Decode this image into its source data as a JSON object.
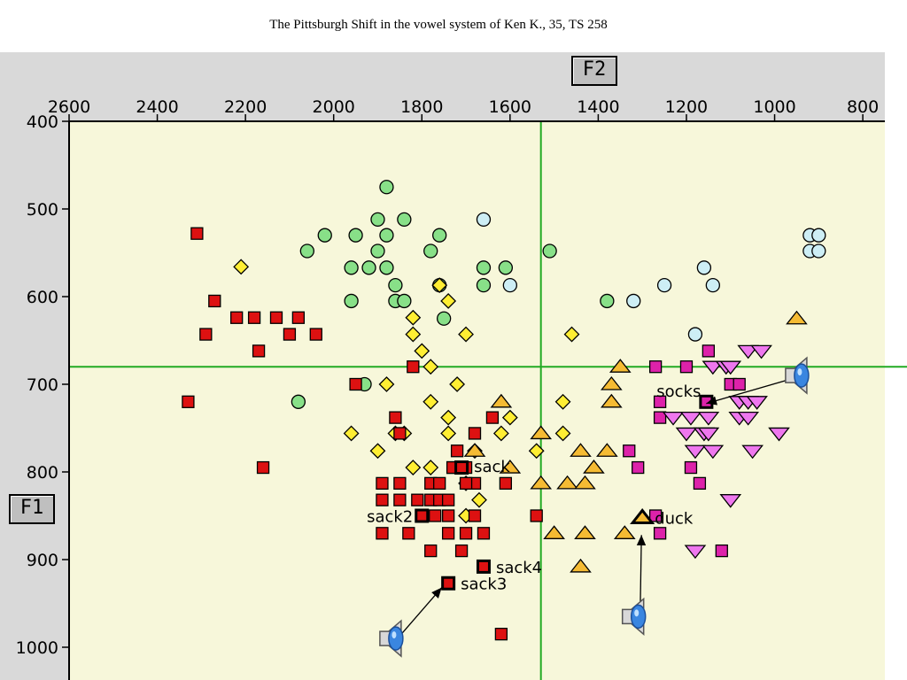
{
  "title": "The Pittsburgh Shift in the vowel system of Ken K., 35, TS 258",
  "axes": {
    "x_label": "F2",
    "y_label": "F1"
  },
  "chart_data": {
    "type": "scatter",
    "xlim": [
      2600,
      750
    ],
    "ylim": [
      400,
      1040
    ],
    "x_ticks": [
      2600,
      2400,
      2200,
      2000,
      1800,
      1600,
      1400,
      1200,
      1000,
      800
    ],
    "y_ticks": [
      400,
      500,
      600,
      700,
      800,
      900,
      1000
    ],
    "reference_lines": {
      "x": 1530,
      "y": 680,
      "color": "#22aa22"
    },
    "background": "#f7f7da",
    "series": [
      {
        "marker": "circle",
        "color": "#88e088",
        "points": [
          [
            1880,
            475
          ],
          [
            1900,
            512
          ],
          [
            1840,
            512
          ],
          [
            1950,
            530
          ],
          [
            1880,
            530
          ],
          [
            2020,
            530
          ],
          [
            1760,
            530
          ],
          [
            2060,
            548
          ],
          [
            1900,
            548
          ],
          [
            1780,
            548
          ],
          [
            1960,
            567
          ],
          [
            1920,
            567
          ],
          [
            1880,
            567
          ],
          [
            1660,
            567
          ],
          [
            1610,
            567
          ],
          [
            1860,
            587
          ],
          [
            1760,
            587
          ],
          [
            1660,
            587
          ],
          [
            1960,
            605
          ],
          [
            1860,
            605
          ],
          [
            1840,
            605
          ],
          [
            1750,
            625
          ],
          [
            1510,
            548
          ],
          [
            1380,
            605
          ],
          [
            1930,
            700
          ],
          [
            2080,
            720
          ]
        ]
      },
      {
        "marker": "circle",
        "color": "#cdeef5",
        "points": [
          [
            1660,
            512
          ],
          [
            1600,
            587
          ],
          [
            1250,
            587
          ],
          [
            1160,
            567
          ],
          [
            1140,
            587
          ],
          [
            1320,
            605
          ],
          [
            1180,
            643
          ],
          [
            920,
            530
          ],
          [
            900,
            530
          ],
          [
            920,
            548
          ],
          [
            900,
            548
          ]
        ]
      },
      {
        "marker": "diamond",
        "color": "#ffee33",
        "points": [
          [
            2210,
            566
          ],
          [
            1820,
            624
          ],
          [
            1820,
            643
          ],
          [
            1800,
            662
          ],
          [
            1780,
            680
          ],
          [
            1760,
            587
          ],
          [
            1740,
            605
          ],
          [
            1700,
            643
          ],
          [
            1460,
            643
          ],
          [
            1880,
            700
          ],
          [
            1780,
            720
          ],
          [
            1720,
            700
          ],
          [
            1740,
            738
          ],
          [
            1600,
            738
          ],
          [
            1480,
            720
          ],
          [
            1960,
            756
          ],
          [
            1860,
            756
          ],
          [
            1840,
            756
          ],
          [
            1740,
            756
          ],
          [
            1620,
            756
          ],
          [
            1480,
            756
          ],
          [
            1900,
            776
          ],
          [
            1820,
            795
          ],
          [
            1780,
            795
          ],
          [
            1680,
            776
          ],
          [
            1540,
            776
          ],
          [
            1700,
            813
          ],
          [
            1670,
            832
          ],
          [
            1700,
            850
          ]
        ]
      },
      {
        "marker": "square",
        "color": "#dd1111",
        "points": [
          [
            2310,
            528
          ],
          [
            2270,
            605
          ],
          [
            2290,
            643
          ],
          [
            2220,
            624
          ],
          [
            2180,
            624
          ],
          [
            2130,
            624
          ],
          [
            2080,
            624
          ],
          [
            2100,
            643
          ],
          [
            2040,
            643
          ],
          [
            2170,
            662
          ],
          [
            2330,
            720
          ],
          [
            1820,
            680
          ],
          [
            1950,
            700
          ],
          [
            1860,
            738
          ],
          [
            1850,
            756
          ],
          [
            1680,
            756
          ],
          [
            1640,
            738
          ],
          [
            1720,
            776
          ],
          [
            1730,
            795
          ],
          [
            1730,
            795
          ],
          [
            1700,
            795
          ],
          [
            1890,
            813
          ],
          [
            1850,
            813
          ],
          [
            1780,
            813
          ],
          [
            1760,
            813
          ],
          [
            1680,
            813
          ],
          [
            1700,
            813
          ],
          [
            1610,
            813
          ],
          [
            1890,
            832
          ],
          [
            1850,
            832
          ],
          [
            1810,
            832
          ],
          [
            1780,
            832
          ],
          [
            1760,
            832
          ],
          [
            1740,
            832
          ],
          [
            1680,
            850
          ],
          [
            1770,
            850
          ],
          [
            1740,
            850
          ],
          [
            1540,
            850
          ],
          [
            1890,
            870
          ],
          [
            1830,
            870
          ],
          [
            1740,
            870
          ],
          [
            1700,
            870
          ],
          [
            1660,
            870
          ],
          [
            1780,
            890
          ],
          [
            1710,
            890
          ],
          [
            2160,
            795
          ],
          [
            1620,
            985
          ]
        ]
      },
      {
        "marker": "triangle-up",
        "color": "#f5bb33",
        "points": [
          [
            950,
            625
          ],
          [
            1350,
            680
          ],
          [
            1370,
            700
          ],
          [
            1370,
            720
          ],
          [
            1620,
            720
          ],
          [
            1680,
            776
          ],
          [
            1600,
            795
          ],
          [
            1530,
            756
          ],
          [
            1440,
            776
          ],
          [
            1380,
            776
          ],
          [
            1410,
            795
          ],
          [
            1530,
            813
          ],
          [
            1470,
            813
          ],
          [
            1430,
            813
          ],
          [
            1500,
            870
          ],
          [
            1430,
            870
          ],
          [
            1340,
            870
          ],
          [
            1440,
            908
          ]
        ]
      },
      {
        "marker": "square",
        "color": "#dd22aa",
        "points": [
          [
            1270,
            680
          ],
          [
            1200,
            680
          ],
          [
            1150,
            662
          ],
          [
            1100,
            700
          ],
          [
            1080,
            700
          ],
          [
            1260,
            720
          ],
          [
            1260,
            738
          ],
          [
            1330,
            776
          ],
          [
            1310,
            795
          ],
          [
            1190,
            795
          ],
          [
            1170,
            813
          ],
          [
            1260,
            870
          ],
          [
            1120,
            890
          ],
          [
            1270,
            850
          ]
        ]
      },
      {
        "marker": "triangle-down",
        "color": "#ee77ee",
        "points": [
          [
            1060,
            662
          ],
          [
            1030,
            662
          ],
          [
            1140,
            680
          ],
          [
            1110,
            680
          ],
          [
            1100,
            680
          ],
          [
            1080,
            720
          ],
          [
            1060,
            720
          ],
          [
            1040,
            720
          ],
          [
            1230,
            738
          ],
          [
            1190,
            738
          ],
          [
            1150,
            738
          ],
          [
            1080,
            738
          ],
          [
            1060,
            738
          ],
          [
            1200,
            756
          ],
          [
            1160,
            756
          ],
          [
            1150,
            756
          ],
          [
            1180,
            776
          ],
          [
            1140,
            776
          ],
          [
            1050,
            776
          ],
          [
            990,
            756
          ],
          [
            1100,
            832
          ],
          [
            1180,
            890
          ]
        ]
      }
    ],
    "highlighted": [
      {
        "label": "socks",
        "x": 1155,
        "y": 720,
        "marker": "square",
        "color": "#dd22aa"
      },
      {
        "label": "sack",
        "x": 1710,
        "y": 795,
        "marker": "square",
        "color": "#dd1111"
      },
      {
        "label": "sack2",
        "x": 1800,
        "y": 850,
        "marker": "square",
        "color": "#dd1111"
      },
      {
        "label": "sack4",
        "x": 1660,
        "y": 908,
        "marker": "square",
        "color": "#dd1111"
      },
      {
        "label": "sack3",
        "x": 1740,
        "y": 927,
        "marker": "square",
        "color": "#dd1111"
      },
      {
        "label": "duck",
        "x": 1300,
        "y": 852,
        "marker": "triangle-up",
        "color": "#f5bb33"
      }
    ],
    "audio_icons": [
      {
        "name": "speaker-icon-socks",
        "x": 935,
        "y": 690,
        "arrow_to": [
          1155,
          722
        ]
      },
      {
        "name": "speaker-icon-sack3",
        "x": 1855,
        "y": 990,
        "arrow_to": [
          1755,
          932
        ]
      },
      {
        "name": "speaker-icon-duck",
        "x": 1305,
        "y": 965,
        "arrow_to": [
          1302,
          872
        ]
      }
    ]
  }
}
